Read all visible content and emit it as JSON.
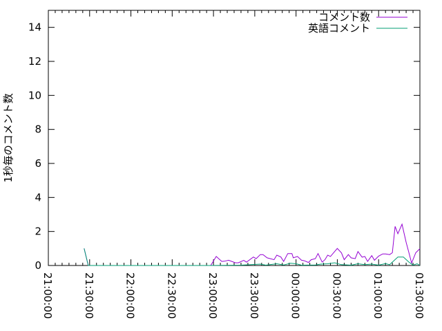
{
  "chart_data": {
    "type": "line",
    "title": "",
    "xlabel": "",
    "ylabel": "1秒毎のコメント数",
    "xlim": [
      "21:00:00",
      "01:30:00"
    ],
    "ylim": [
      0,
      15
    ],
    "x_ticks": [
      "21:00:00",
      "21:30:00",
      "22:00:00",
      "22:30:00",
      "23:00:00",
      "23:30:00",
      "00:00:00",
      "00:30:00",
      "01:00:00",
      "01:30:00"
    ],
    "y_ticks": [
      0,
      2,
      4,
      6,
      8,
      10,
      12,
      14
    ],
    "y_tick_labels": [
      "0",
      "2",
      "4",
      "6",
      "8",
      "10",
      "12",
      "14"
    ],
    "grid": false,
    "legend_position": "top-right",
    "series": [
      {
        "name": "コメント数",
        "color": "#9400d3",
        "points": [
          [
            "21:26",
            1.0
          ],
          [
            "21:29",
            0
          ],
          [
            "22:58",
            0
          ],
          [
            "23:02",
            0.53
          ],
          [
            "23:06",
            0.24
          ],
          [
            "23:08",
            0.25
          ],
          [
            "23:11",
            0.31
          ],
          [
            "23:16",
            0.16
          ],
          [
            "23:18",
            0.16
          ],
          [
            "23:22",
            0.3
          ],
          [
            "23:24",
            0.2
          ],
          [
            "23:29",
            0.5
          ],
          [
            "23:31",
            0.4
          ],
          [
            "23:34",
            0.64
          ],
          [
            "23:36",
            0.64
          ],
          [
            "23:39",
            0.45
          ],
          [
            "23:44",
            0.34
          ],
          [
            "23:46",
            0.61
          ],
          [
            "23:49",
            0.5
          ],
          [
            "23:51",
            0.24
          ],
          [
            "23:54",
            0.7
          ],
          [
            "23:57",
            0.7
          ],
          [
            "23:58",
            0.45
          ],
          [
            "00:01",
            0.53
          ],
          [
            "00:04",
            0.31
          ],
          [
            "00:06",
            0.28
          ],
          [
            "00:09",
            0.18
          ],
          [
            "00:11",
            0.34
          ],
          [
            "00:14",
            0.4
          ],
          [
            "00:16",
            0.7
          ],
          [
            "00:19",
            0.2
          ],
          [
            "00:21",
            0.34
          ],
          [
            "00:23",
            0.61
          ],
          [
            "00:25",
            0.53
          ],
          [
            "00:28",
            0.82
          ],
          [
            "00:30",
            1.0
          ],
          [
            "00:33",
            0.74
          ],
          [
            "00:35",
            0.34
          ],
          [
            "00:38",
            0.64
          ],
          [
            "00:40",
            0.45
          ],
          [
            "00:43",
            0.4
          ],
          [
            "00:45",
            0.82
          ],
          [
            "00:48",
            0.49
          ],
          [
            "00:50",
            0.53
          ],
          [
            "00:52",
            0.24
          ],
          [
            "00:55",
            0.58
          ],
          [
            "00:57",
            0.31
          ],
          [
            "01:00",
            0.55
          ],
          [
            "01:03",
            0.68
          ],
          [
            "01:05",
            0.68
          ],
          [
            "01:08",
            0.64
          ],
          [
            "01:10",
            0.75
          ],
          [
            "01:12",
            2.3
          ],
          [
            "01:14",
            1.87
          ],
          [
            "01:17",
            2.43
          ],
          [
            "01:20",
            1.36
          ],
          [
            "01:22",
            0.75
          ],
          [
            "01:24",
            0.14
          ],
          [
            "01:27",
            0.75
          ],
          [
            "01:30",
            0.99
          ]
        ]
      },
      {
        "name": "英語コメント",
        "color": "#009e73",
        "points": [
          [
            "21:26",
            1.0
          ],
          [
            "21:29",
            0
          ],
          [
            "22:58",
            0
          ],
          [
            "23:20",
            0.02
          ],
          [
            "23:34",
            0.08
          ],
          [
            "23:38",
            0.02
          ],
          [
            "23:46",
            0.1
          ],
          [
            "23:51",
            0.03
          ],
          [
            "23:56",
            0.13
          ],
          [
            "00:00",
            0.1
          ],
          [
            "00:04",
            0.02
          ],
          [
            "00:14",
            0.03
          ],
          [
            "00:18",
            0.08
          ],
          [
            "00:23",
            0.1
          ],
          [
            "00:28",
            0.16
          ],
          [
            "00:33",
            0.05
          ],
          [
            "00:40",
            0.02
          ],
          [
            "00:45",
            0.1
          ],
          [
            "00:50",
            0.05
          ],
          [
            "00:55",
            0.08
          ],
          [
            "01:00",
            0.02
          ],
          [
            "01:05",
            0.11
          ],
          [
            "01:08",
            0.05
          ],
          [
            "01:10",
            0.2
          ],
          [
            "01:14",
            0.5
          ],
          [
            "01:18",
            0.5
          ],
          [
            "01:22",
            0.2
          ],
          [
            "01:25",
            0.02
          ],
          [
            "01:28",
            0.1
          ],
          [
            "01:30",
            0
          ]
        ]
      }
    ]
  }
}
